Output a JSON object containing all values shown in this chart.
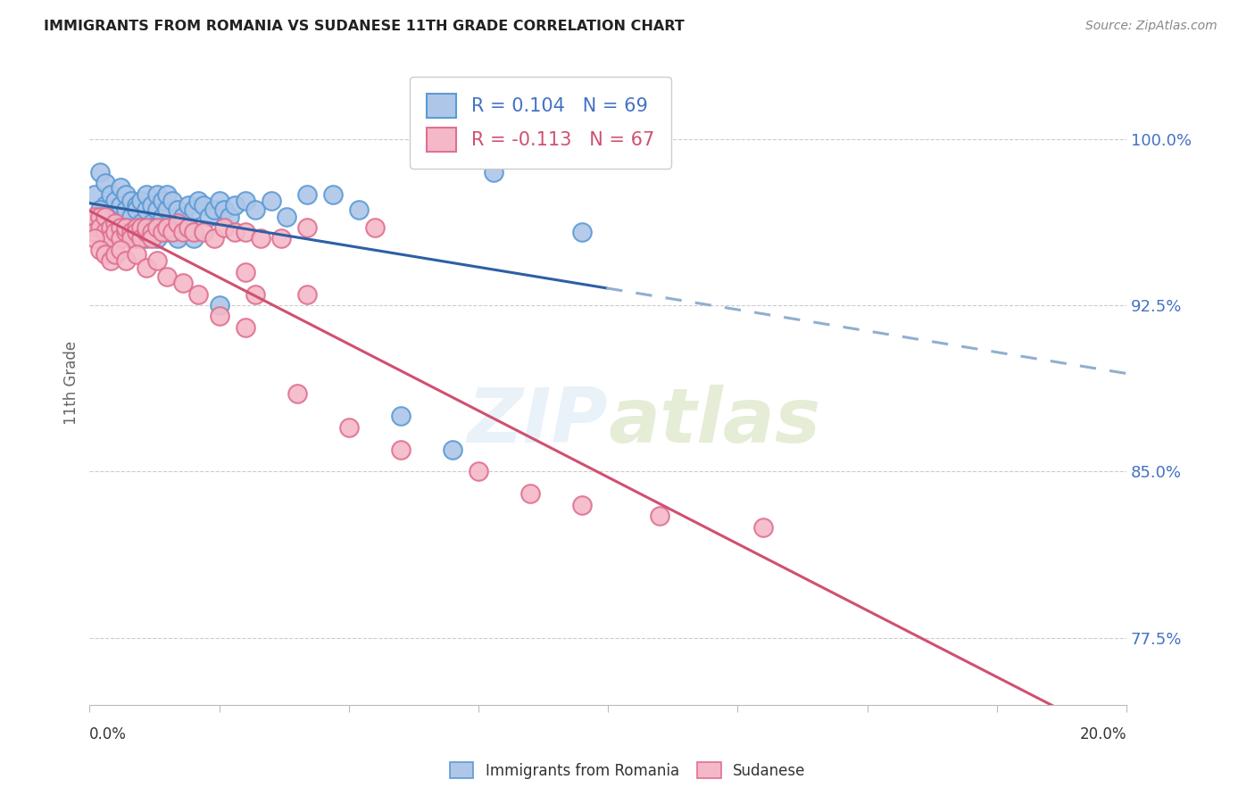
{
  "title": "IMMIGRANTS FROM ROMANIA VS SUDANESE 11TH GRADE CORRELATION CHART",
  "source": "Source: ZipAtlas.com",
  "ylabel": "11th Grade",
  "ytick_labels": [
    "77.5%",
    "85.0%",
    "92.5%",
    "100.0%"
  ],
  "ytick_values": [
    0.775,
    0.85,
    0.925,
    1.0
  ],
  "xlim": [
    0.0,
    0.2
  ],
  "ylim": [
    0.745,
    1.035
  ],
  "romania_color": "#aec6e8",
  "romania_edge": "#5b9bd5",
  "sudanese_color": "#f4b8c8",
  "sudanese_edge": "#e07090",
  "trendline_romania_solid_color": "#2e5fa3",
  "trendline_romania_dashed_color": "#90afd0",
  "trendline_sudanese_color": "#d05070",
  "legend_label_romania": "Immigrants from Romania",
  "legend_label_sudanese": "Sudanese",
  "R_romania": 0.104,
  "N_romania": 69,
  "R_sudanese": -0.113,
  "N_sudanese": 67,
  "romania_x": [
    0.001,
    0.002,
    0.003,
    0.003,
    0.004,
    0.004,
    0.005,
    0.005,
    0.006,
    0.006,
    0.007,
    0.007,
    0.008,
    0.008,
    0.009,
    0.009,
    0.01,
    0.01,
    0.011,
    0.011,
    0.012,
    0.012,
    0.013,
    0.013,
    0.014,
    0.014,
    0.015,
    0.015,
    0.016,
    0.017,
    0.018,
    0.019,
    0.02,
    0.021,
    0.022,
    0.023,
    0.024,
    0.025,
    0.026,
    0.027,
    0.028,
    0.03,
    0.032,
    0.035,
    0.038,
    0.042,
    0.047,
    0.052,
    0.06,
    0.07,
    0.001,
    0.002,
    0.003,
    0.004,
    0.005,
    0.006,
    0.007,
    0.008,
    0.009,
    0.01,
    0.011,
    0.012,
    0.013,
    0.015,
    0.017,
    0.02,
    0.025,
    0.078,
    0.095
  ],
  "romania_y": [
    0.975,
    0.985,
    0.98,
    0.97,
    0.975,
    0.968,
    0.972,
    0.965,
    0.97,
    0.978,
    0.968,
    0.975,
    0.972,
    0.965,
    0.97,
    0.968,
    0.972,
    0.962,
    0.968,
    0.975,
    0.97,
    0.962,
    0.968,
    0.975,
    0.965,
    0.972,
    0.968,
    0.975,
    0.972,
    0.968,
    0.965,
    0.97,
    0.968,
    0.972,
    0.97,
    0.965,
    0.968,
    0.972,
    0.968,
    0.965,
    0.97,
    0.972,
    0.968,
    0.972,
    0.965,
    0.975,
    0.975,
    0.968,
    0.875,
    0.86,
    0.96,
    0.968,
    0.955,
    0.962,
    0.958,
    0.955,
    0.96,
    0.958,
    0.955,
    0.96,
    0.955,
    0.96,
    0.955,
    0.958,
    0.955,
    0.955,
    0.925,
    0.985,
    0.958
  ],
  "sudanese_x": [
    0.001,
    0.001,
    0.002,
    0.002,
    0.003,
    0.003,
    0.004,
    0.004,
    0.005,
    0.005,
    0.006,
    0.006,
    0.007,
    0.007,
    0.008,
    0.008,
    0.009,
    0.009,
    0.01,
    0.01,
    0.011,
    0.011,
    0.012,
    0.012,
    0.013,
    0.014,
    0.015,
    0.016,
    0.017,
    0.018,
    0.019,
    0.02,
    0.022,
    0.024,
    0.026,
    0.028,
    0.03,
    0.033,
    0.037,
    0.042,
    0.001,
    0.002,
    0.003,
    0.004,
    0.005,
    0.006,
    0.007,
    0.009,
    0.011,
    0.013,
    0.015,
    0.018,
    0.021,
    0.025,
    0.03,
    0.032,
    0.04,
    0.05,
    0.06,
    0.075,
    0.085,
    0.095,
    0.11,
    0.13,
    0.03,
    0.042,
    0.055
  ],
  "sudanese_y": [
    0.965,
    0.958,
    0.965,
    0.96,
    0.965,
    0.958,
    0.96,
    0.955,
    0.962,
    0.958,
    0.96,
    0.955,
    0.958,
    0.96,
    0.958,
    0.955,
    0.96,
    0.958,
    0.96,
    0.955,
    0.958,
    0.96,
    0.958,
    0.955,
    0.96,
    0.958,
    0.96,
    0.958,
    0.962,
    0.958,
    0.96,
    0.958,
    0.958,
    0.955,
    0.96,
    0.958,
    0.958,
    0.955,
    0.955,
    0.96,
    0.955,
    0.95,
    0.948,
    0.945,
    0.948,
    0.95,
    0.945,
    0.948,
    0.942,
    0.945,
    0.938,
    0.935,
    0.93,
    0.92,
    0.915,
    0.93,
    0.885,
    0.87,
    0.86,
    0.85,
    0.84,
    0.835,
    0.83,
    0.825,
    0.94,
    0.93,
    0.96
  ]
}
